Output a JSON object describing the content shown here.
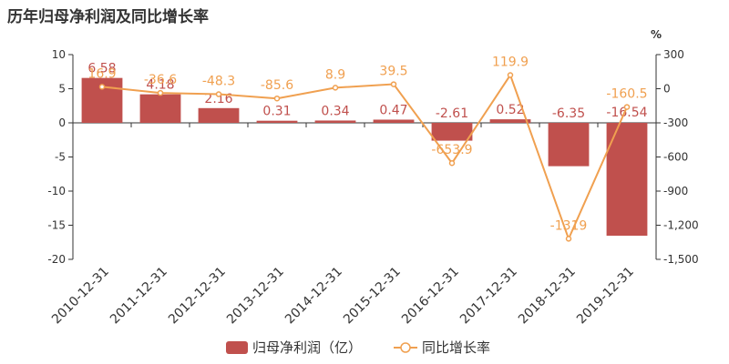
{
  "title": "历年归母净利润及同比增长率",
  "chart_data": {
    "type": "bar+line",
    "categories": [
      "2010-12-31",
      "2011-12-31",
      "2012-12-31",
      "2013-12-31",
      "2014-12-31",
      "2015-12-31",
      "2016-12-31",
      "2017-12-31",
      "2018-12-31",
      "2019-12-31"
    ],
    "series": [
      {
        "name": "归母净利润（亿）",
        "type": "bar",
        "axis": "left",
        "color": "#c0504d",
        "values": [
          6.58,
          4.18,
          2.16,
          0.31,
          0.34,
          0.47,
          -2.61,
          0.52,
          -6.35,
          -16.54
        ],
        "labels": [
          "6.58",
          "4.18",
          "2.16",
          "0.31",
          "0.34",
          "0.47",
          "-2.61",
          "0.52",
          "-6.35",
          "-16.54"
        ]
      },
      {
        "name": "同比增长率",
        "type": "line",
        "axis": "right",
        "color": "#f0a050",
        "values": [
          16.9,
          -36.6,
          -48.3,
          -85.6,
          8.9,
          39.5,
          -653.9,
          119.9,
          -1319,
          -160.5
        ],
        "labels": [
          "16.9",
          "-36.6",
          "-48.3",
          "-85.6",
          "8.9",
          "39.5",
          "-653.9",
          "119.9",
          "-1319",
          "-160.5"
        ]
      }
    ],
    "y_left": {
      "min": -20,
      "max": 10,
      "ticks": [
        10,
        5,
        0,
        -5,
        -10,
        -15,
        -20
      ],
      "tick_labels": [
        "10",
        "5",
        "0",
        "-5",
        "-10",
        "-15",
        "-20"
      ]
    },
    "y_right": {
      "min": -1500,
      "max": 300,
      "unit": "%",
      "ticks": [
        300,
        0,
        -300,
        -600,
        -900,
        -1200,
        -1500
      ],
      "tick_labels": [
        "300",
        "0",
        "-300",
        "-600",
        "-900",
        "-1,200",
        "-1,500"
      ]
    },
    "grid": false,
    "legend_position": "bottom-center"
  }
}
